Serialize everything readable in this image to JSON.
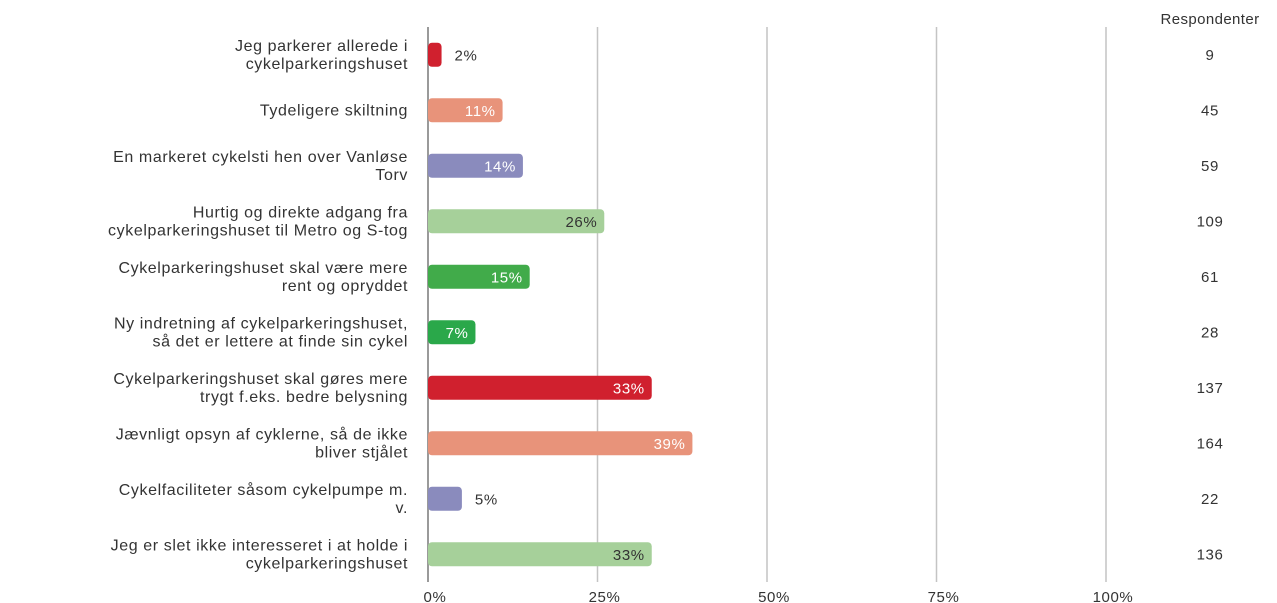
{
  "chart_data": {
    "type": "bar",
    "orientation": "horizontal",
    "categories": [
      [
        "Jeg parkerer allerede i",
        "cykelparkeringshuset"
      ],
      [
        "Tydeligere skiltning"
      ],
      [
        "En markeret cykelsti hen over Vanløse",
        "Torv"
      ],
      [
        "Hurtig og direkte adgang fra",
        "cykelparkeringshuset til Metro og S-tog"
      ],
      [
        "Cykelparkeringshuset skal være mere",
        "rent og opryddet"
      ],
      [
        "Ny indretning af cykelparkeringshuset,",
        "så det er lettere at finde sin cykel"
      ],
      [
        "Cykelparkeringshuset skal gøres mere",
        "trygt f.eks. bedre belysning"
      ],
      [
        "Jævnligt opsyn af cyklerne, så de ikke",
        "bliver stjålet"
      ],
      [
        "Cykelfaciliteter såsom cykelpumpe m.",
        "v."
      ],
      [
        "Jeg er slet ikke interesseret i at holde i",
        "cykelparkeringshuset"
      ]
    ],
    "values": [
      2,
      11,
      14,
      26,
      15,
      7,
      33,
      39,
      5,
      33
    ],
    "value_labels": [
      "2%",
      "11%",
      "14%",
      "26%",
      "15%",
      "7%",
      "33%",
      "39%",
      "5%",
      "33%"
    ],
    "respondents_header": "Respondenter",
    "respondents": [
      "9",
      "45",
      "59",
      "109",
      "61",
      "28",
      "137",
      "164",
      "22",
      "136"
    ],
    "colors": [
      "#d0202e",
      "#e8937a",
      "#8a8bbd",
      "#a6d09a",
      "#41ab4a",
      "#2aa84a",
      "#d0202e",
      "#e8937a",
      "#8a8bbd",
      "#a6d09a"
    ],
    "label_colors": [
      "#333333",
      "#ffffff",
      "#ffffff",
      "#333333",
      "#ffffff",
      "#ffffff",
      "#ffffff",
      "#ffffff",
      "#333333",
      "#333333"
    ],
    "xticks": [
      "0%",
      "25%",
      "50%",
      "75%",
      "100%"
    ],
    "xlim": [
      0,
      100
    ],
    "grid": true
  }
}
